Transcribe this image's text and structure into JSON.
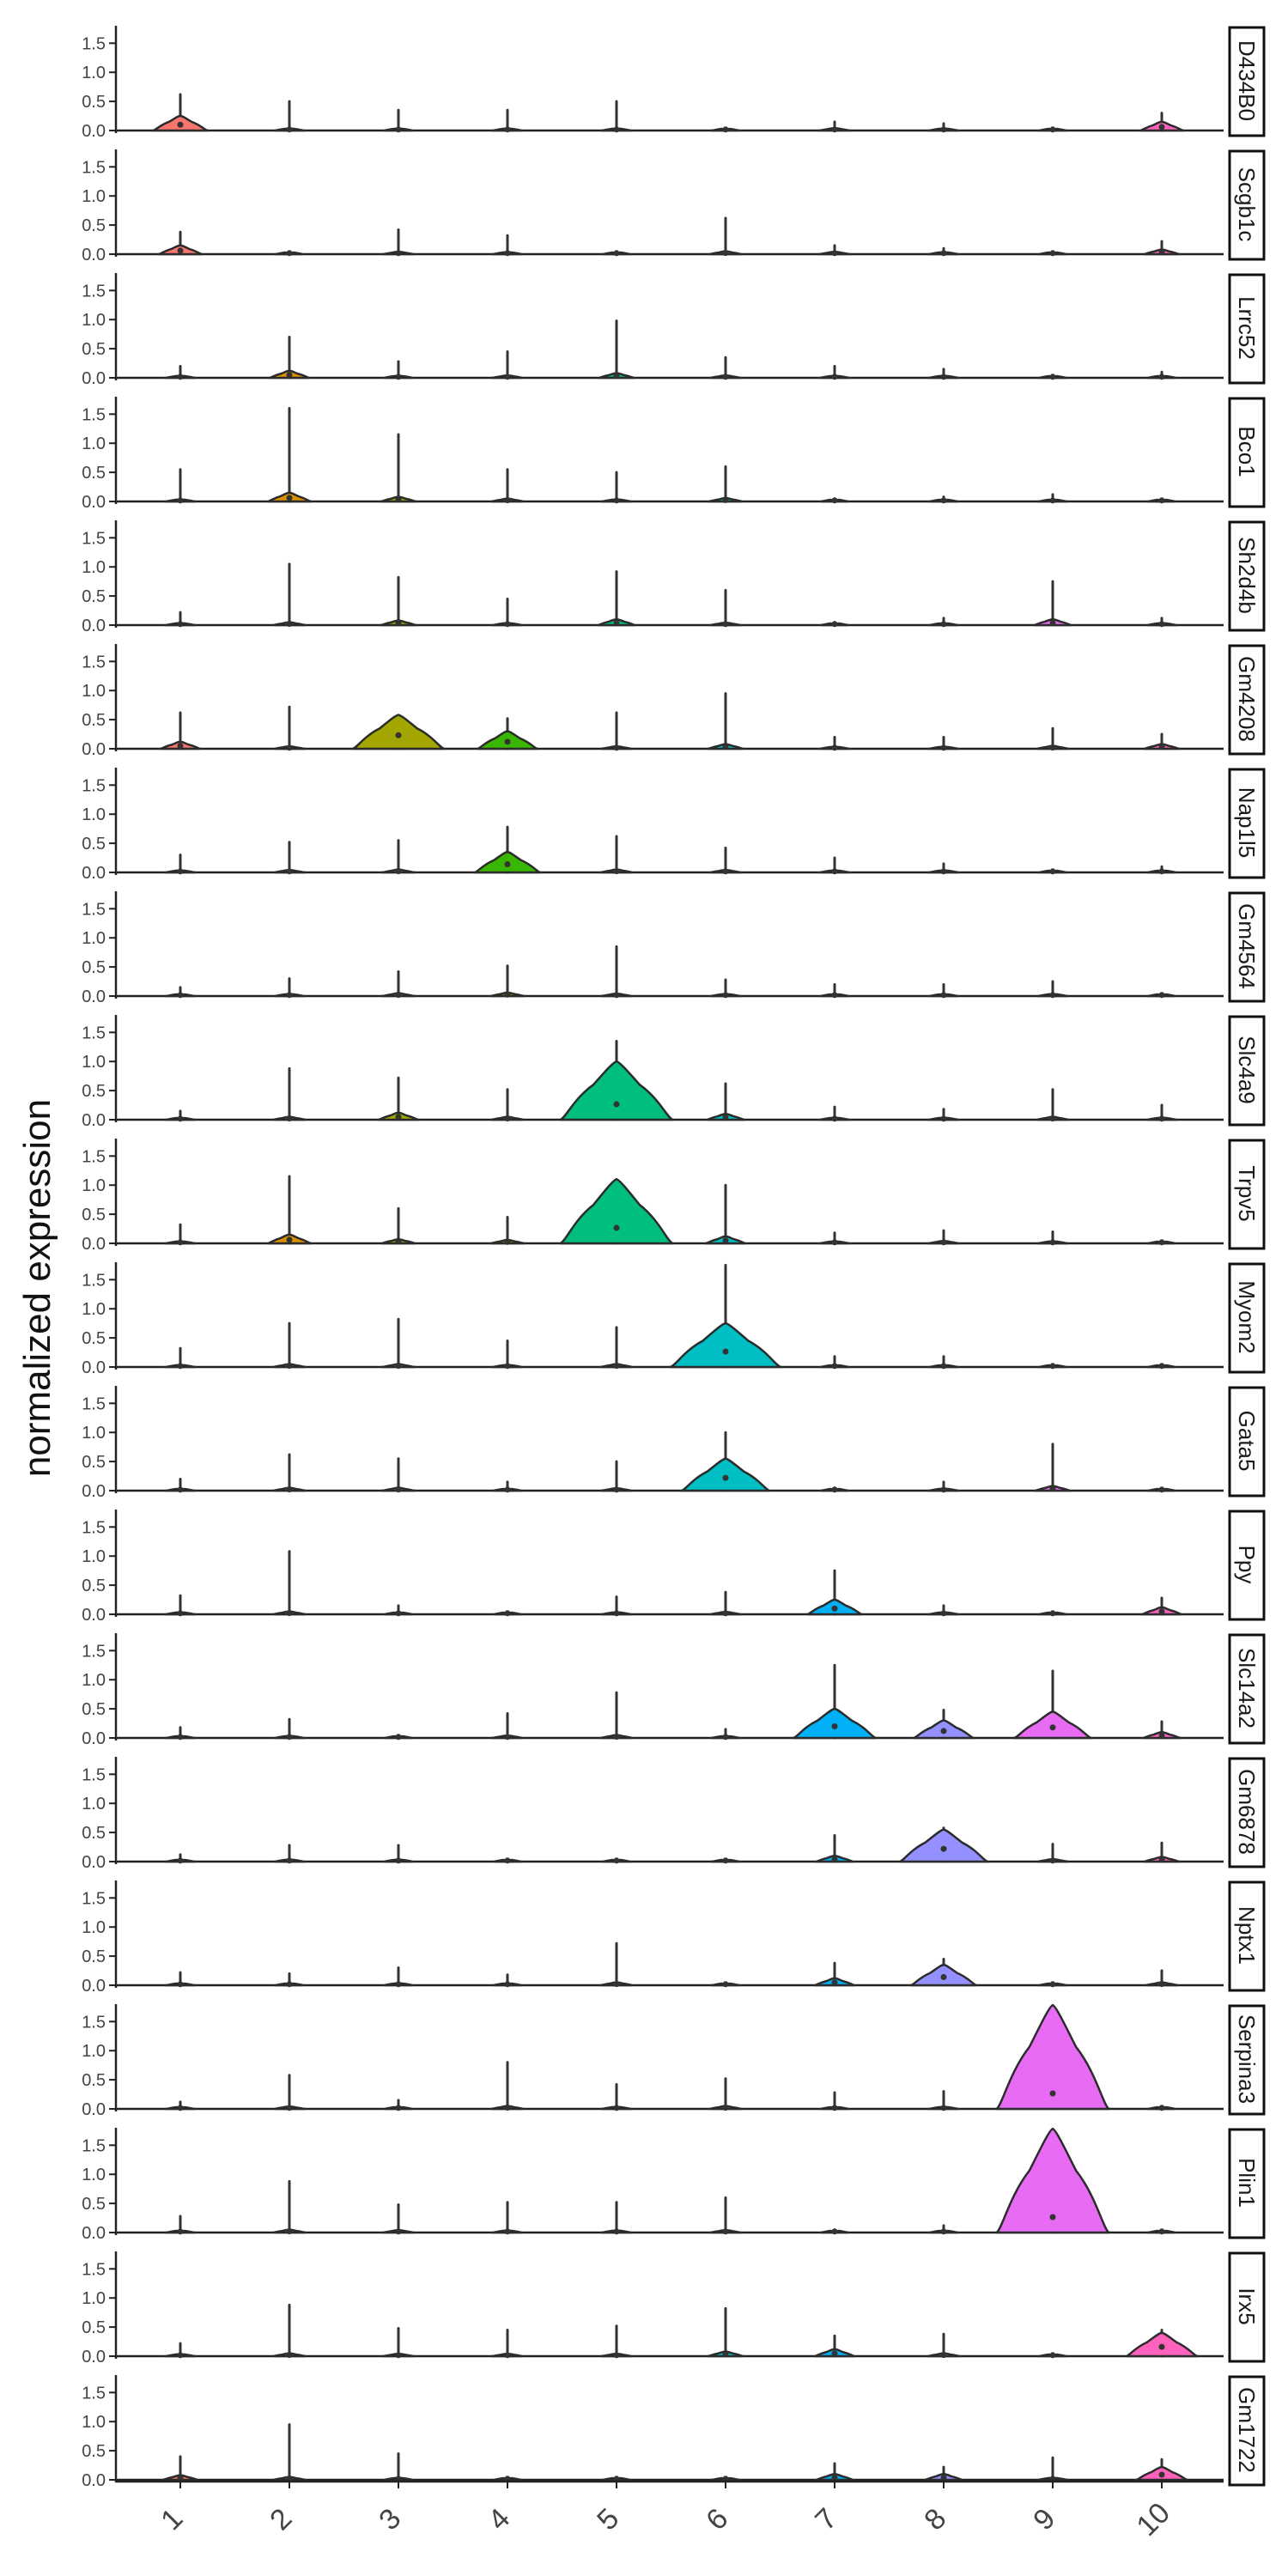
{
  "chart_data": {
    "type": "violin",
    "ylabel": "normalized expression",
    "xlabel": "",
    "categories": [
      "1",
      "2",
      "3",
      "4",
      "5",
      "6",
      "7",
      "8",
      "9",
      "10"
    ],
    "ylim": [
      0,
      1.8
    ],
    "yticks": [
      0.0,
      0.5,
      1.0,
      1.5
    ],
    "ytick_labels": [
      "0.0",
      "0.5",
      "1.0",
      "1.5"
    ],
    "grid": false,
    "legend": "none",
    "cluster_colors": [
      "#F8766D",
      "#D89000",
      "#A3A500",
      "#39B600",
      "#00BF7D",
      "#00BFC4",
      "#00B0F6",
      "#9590FF",
      "#E76BF3",
      "#FF62BC"
    ],
    "panels": [
      {
        "gene": "D434B0",
        "max": [
          0.62,
          0.5,
          0.35,
          0.35,
          0.5,
          0.02,
          0.15,
          0.12,
          0.02,
          0.3
        ],
        "body": [
          0.25,
          0.03,
          0.03,
          0.03,
          0.03,
          0.01,
          0.04,
          0.03,
          0.01,
          0.15
        ]
      },
      {
        "gene": "Scgb1c",
        "max": [
          0.38,
          0.02,
          0.42,
          0.32,
          0.02,
          0.62,
          0.15,
          0.1,
          0.02,
          0.22
        ],
        "body": [
          0.15,
          0.01,
          0.04,
          0.03,
          0.01,
          0.05,
          0.04,
          0.03,
          0.01,
          0.08
        ]
      },
      {
        "gene": "Lrrc52",
        "max": [
          0.2,
          0.7,
          0.28,
          0.45,
          0.98,
          0.35,
          0.2,
          0.15,
          0.02,
          0.1
        ],
        "body": [
          0.03,
          0.12,
          0.03,
          0.04,
          0.08,
          0.04,
          0.03,
          0.03,
          0.01,
          0.02
        ]
      },
      {
        "gene": "Bco1",
        "max": [
          0.55,
          1.6,
          1.15,
          0.55,
          0.5,
          0.6,
          0.02,
          0.08,
          0.12,
          0.02
        ],
        "body": [
          0.03,
          0.15,
          0.08,
          0.05,
          0.03,
          0.06,
          0.01,
          0.02,
          0.02,
          0.01
        ]
      },
      {
        "gene": "Sh2d4b",
        "max": [
          0.22,
          1.05,
          0.82,
          0.45,
          0.92,
          0.6,
          0.02,
          0.12,
          0.75,
          0.12
        ],
        "body": [
          0.03,
          0.05,
          0.08,
          0.03,
          0.1,
          0.04,
          0.01,
          0.02,
          0.1,
          0.03
        ]
      },
      {
        "gene": "Gm4208",
        "max": [
          0.62,
          0.72,
          0.58,
          0.52,
          0.62,
          0.95,
          0.2,
          0.2,
          0.35,
          0.25
        ],
        "body": [
          0.12,
          0.04,
          0.58,
          0.3,
          0.04,
          0.08,
          0.03,
          0.03,
          0.05,
          0.08
        ]
      },
      {
        "gene": "Nap1l5",
        "max": [
          0.3,
          0.52,
          0.55,
          0.78,
          0.62,
          0.42,
          0.25,
          0.15,
          0.02,
          0.1
        ],
        "body": [
          0.03,
          0.04,
          0.05,
          0.35,
          0.05,
          0.04,
          0.03,
          0.03,
          0.01,
          0.02
        ]
      },
      {
        "gene": "Gm4564",
        "max": [
          0.15,
          0.3,
          0.42,
          0.52,
          0.85,
          0.28,
          0.2,
          0.2,
          0.25,
          0.02
        ],
        "body": [
          0.02,
          0.03,
          0.05,
          0.06,
          0.04,
          0.03,
          0.02,
          0.02,
          0.03,
          0.01
        ]
      },
      {
        "gene": "Slc4a9",
        "max": [
          0.15,
          0.88,
          0.72,
          0.52,
          1.35,
          0.62,
          0.22,
          0.18,
          0.52,
          0.25
        ],
        "body": [
          0.02,
          0.05,
          0.12,
          0.05,
          1.0,
          0.1,
          0.03,
          0.03,
          0.05,
          0.03
        ]
      },
      {
        "gene": "Trpv5",
        "max": [
          0.32,
          1.15,
          0.6,
          0.45,
          1.1,
          1.0,
          0.18,
          0.22,
          0.2,
          0.02
        ],
        "body": [
          0.03,
          0.15,
          0.07,
          0.06,
          1.1,
          0.12,
          0.03,
          0.04,
          0.03,
          0.01
        ]
      },
      {
        "gene": "Myom2",
        "max": [
          0.32,
          0.75,
          0.82,
          0.45,
          0.68,
          1.75,
          0.18,
          0.18,
          0.02,
          0.02
        ],
        "body": [
          0.03,
          0.05,
          0.05,
          0.03,
          0.05,
          0.75,
          0.02,
          0.02,
          0.01,
          0.01
        ]
      },
      {
        "gene": "Gata5",
        "max": [
          0.2,
          0.62,
          0.55,
          0.15,
          0.5,
          1.0,
          0.02,
          0.15,
          0.8,
          0.02
        ],
        "body": [
          0.02,
          0.05,
          0.05,
          0.02,
          0.04,
          0.55,
          0.01,
          0.03,
          0.08,
          0.01
        ]
      },
      {
        "gene": "Ppy",
        "max": [
          0.32,
          1.08,
          0.15,
          0.02,
          0.3,
          0.38,
          0.75,
          0.15,
          0.02,
          0.28
        ],
        "body": [
          0.03,
          0.05,
          0.02,
          0.01,
          0.03,
          0.04,
          0.25,
          0.03,
          0.01,
          0.12
        ]
      },
      {
        "gene": "Slc14a2",
        "max": [
          0.18,
          0.32,
          0.02,
          0.42,
          0.78,
          0.15,
          1.25,
          0.48,
          1.15,
          0.28
        ],
        "body": [
          0.02,
          0.03,
          0.01,
          0.04,
          0.05,
          0.02,
          0.5,
          0.3,
          0.45,
          0.1
        ]
      },
      {
        "gene": "Gm6878",
        "max": [
          0.12,
          0.28,
          0.28,
          0.02,
          0.02,
          0.02,
          0.45,
          0.58,
          0.3,
          0.32
        ],
        "body": [
          0.02,
          0.03,
          0.03,
          0.01,
          0.01,
          0.01,
          0.1,
          0.55,
          0.04,
          0.08
        ]
      },
      {
        "gene": "Nptx1",
        "max": [
          0.22,
          0.2,
          0.3,
          0.18,
          0.72,
          0.02,
          0.38,
          0.45,
          0.02,
          0.25
        ],
        "body": [
          0.02,
          0.02,
          0.03,
          0.02,
          0.05,
          0.01,
          0.12,
          0.35,
          0.01,
          0.05
        ]
      },
      {
        "gene": "Serpina3",
        "max": [
          0.12,
          0.58,
          0.15,
          0.8,
          0.42,
          0.52,
          0.28,
          0.3,
          1.78,
          0.02
        ],
        "body": [
          0.02,
          0.04,
          0.02,
          0.05,
          0.03,
          0.05,
          0.02,
          0.03,
          1.78,
          0.01
        ]
      },
      {
        "gene": "Plin1",
        "max": [
          0.28,
          0.88,
          0.48,
          0.52,
          0.52,
          0.6,
          0.02,
          0.12,
          1.78,
          0.02
        ],
        "body": [
          0.02,
          0.05,
          0.04,
          0.03,
          0.03,
          0.04,
          0.01,
          0.02,
          1.78,
          0.01
        ]
      },
      {
        "gene": "Irx5",
        "max": [
          0.22,
          0.88,
          0.48,
          0.45,
          0.52,
          0.82,
          0.35,
          0.38,
          0.02,
          0.45
        ],
        "body": [
          0.03,
          0.05,
          0.04,
          0.04,
          0.04,
          0.08,
          0.12,
          0.05,
          0.01,
          0.4
        ]
      },
      {
        "gene": "Gm1722",
        "max": [
          0.4,
          0.95,
          0.45,
          0.02,
          0.02,
          0.02,
          0.28,
          0.22,
          0.38,
          0.35
        ],
        "body": [
          0.08,
          0.05,
          0.03,
          0.01,
          0.01,
          0.01,
          0.1,
          0.1,
          0.03,
          0.22
        ]
      }
    ]
  }
}
